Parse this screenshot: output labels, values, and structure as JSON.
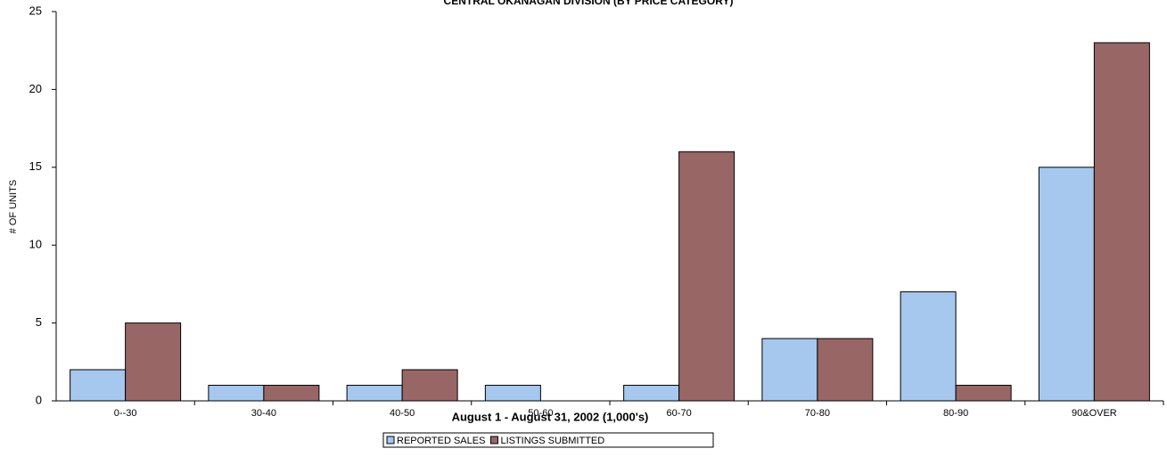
{
  "chart_data": {
    "type": "bar",
    "title": "CENTRAL OKANAGAN DIVISION (BY PRICE CATEGORY)",
    "x_label": "August 1 - August 31, 2002 (1,000's)",
    "y_label": "# OF UNITS",
    "categories": [
      "0--30",
      "30-40",
      "40-50",
      "50-60",
      "60-70",
      "70-80",
      "80-90",
      "90&OVER"
    ],
    "series": [
      {
        "name": "REPORTED SALES",
        "color": "#a6c8ee",
        "values": [
          2,
          1,
          1,
          1,
          1,
          4,
          7,
          15
        ]
      },
      {
        "name": "LISTINGS SUBMITTED",
        "color": "#996666",
        "values": [
          5,
          1,
          2,
          0,
          16,
          4,
          1,
          23
        ]
      }
    ],
    "ylim": [
      0,
      25
    ],
    "yticks": [
      0,
      5,
      10,
      15,
      20,
      25
    ],
    "grid": false
  }
}
